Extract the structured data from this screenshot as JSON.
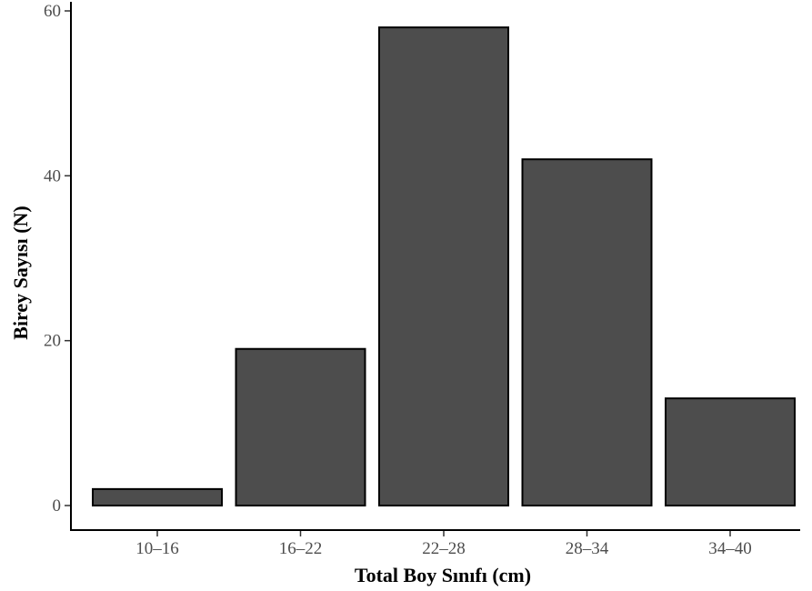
{
  "chart_data": {
    "type": "bar",
    "title": "",
    "xlabel": "Total Boy Sınıfı (cm)",
    "ylabel": "Birey Sayısı (N)",
    "categories": [
      "10–16",
      "16–22",
      "22–28",
      "28–34",
      "34–40"
    ],
    "values": [
      2,
      19,
      58,
      42,
      13
    ],
    "ylim": [
      0,
      60
    ],
    "yticks": [
      "0",
      "20",
      "40",
      "60"
    ],
    "grid": false,
    "legend": "none",
    "colors": {
      "bar_fill": "#4d4d4d",
      "bar_stroke": "#000000",
      "axis": "#000000",
      "tick_text": "#4d4d4d"
    }
  }
}
